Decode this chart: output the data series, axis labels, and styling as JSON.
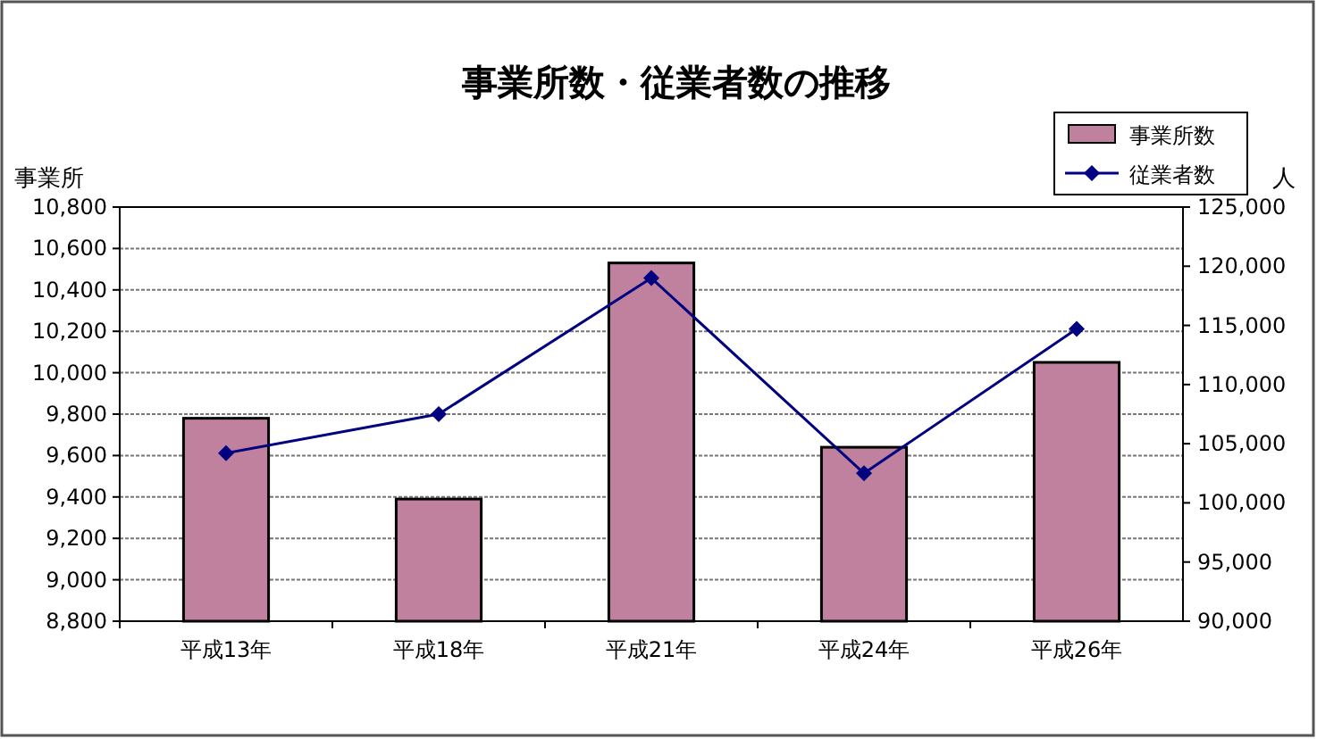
{
  "chart_data": {
    "type": "bar",
    "title": "事業所数・従業者数の推移",
    "ylabel": "事業所",
    "y2label": "人",
    "categories": [
      "平成13年",
      "平成18年",
      "平成21年",
      "平成24年",
      "平成26年"
    ],
    "series": [
      {
        "name": "事業所数",
        "color": "#c0819f",
        "values": [
          9780,
          9390,
          10530,
          9640,
          10050
        ]
      },
      {
        "name": "従業者数",
        "type": "line",
        "axis": "y2",
        "color": "#000080",
        "marker": "diamond",
        "values": [
          104200,
          107500,
          119000,
          102500,
          114700
        ]
      }
    ],
    "ylim": [
      8800,
      10800
    ],
    "yticks": [
      {
        "value": 8800,
        "label": "8,800"
      },
      {
        "value": 9000,
        "label": "9,000"
      },
      {
        "value": 9200,
        "label": "9,200"
      },
      {
        "value": 9400,
        "label": "9,400"
      },
      {
        "value": 9600,
        "label": "9,600"
      },
      {
        "value": 9800,
        "label": "9,800"
      },
      {
        "value": 10000,
        "label": "10,000"
      },
      {
        "value": 10200,
        "label": "10,200"
      },
      {
        "value": 10400,
        "label": "10,400"
      },
      {
        "value": 10600,
        "label": "10,600"
      },
      {
        "value": 10800,
        "label": "10,800"
      }
    ],
    "y2lim": [
      90000,
      125000
    ],
    "y2ticks": [
      {
        "value": 90000,
        "label": "90,000"
      },
      {
        "value": 95000,
        "label": "95,000"
      },
      {
        "value": 100000,
        "label": "100,000"
      },
      {
        "value": 105000,
        "label": "105,000"
      },
      {
        "value": 110000,
        "label": "110,000"
      },
      {
        "value": 115000,
        "label": "115,000"
      },
      {
        "value": 120000,
        "label": "120,000"
      },
      {
        "value": 125000,
        "label": "125,000"
      }
    ],
    "grid": "y",
    "legend": "top right"
  }
}
